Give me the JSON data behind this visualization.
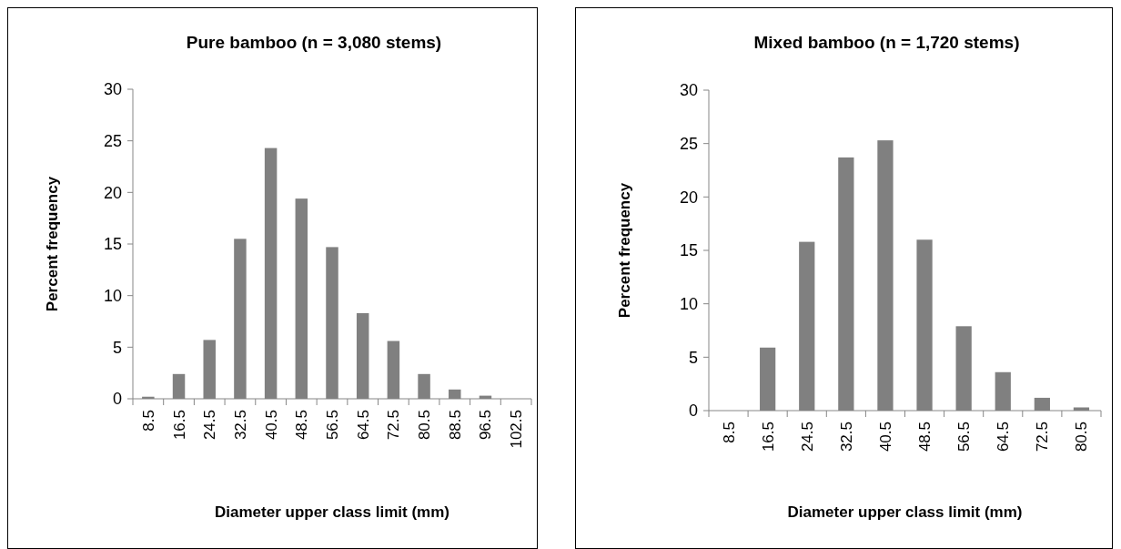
{
  "chart_data": [
    {
      "type": "bar",
      "title": "Pure bamboo (n = 3,080 stems)",
      "xlabel": "Diameter upper class limit (mm)",
      "ylabel": "Percent frequency",
      "categories": [
        "8.5",
        "16.5",
        "24.5",
        "32.5",
        "40.5",
        "48.5",
        "56.5",
        "64.5",
        "72.5",
        "80.5",
        "88.5",
        "96.5",
        "102.5"
      ],
      "values": [
        0.2,
        2.4,
        5.7,
        15.5,
        24.3,
        19.4,
        14.7,
        8.3,
        5.6,
        2.4,
        0.9,
        0.3,
        0
      ],
      "color": "#808080",
      "ylim": [
        0,
        30
      ],
      "yticks": [
        0,
        5,
        10,
        15,
        20,
        25,
        30
      ],
      "grid": false
    },
    {
      "type": "bar",
      "title": "Mixed bamboo (n = 1,720 stems)",
      "xlabel": "Diameter upper class limit (mm)",
      "ylabel": "Percent frequency",
      "categories": [
        "8.5",
        "16.5",
        "24.5",
        "32.5",
        "40.5",
        "48.5",
        "56.5",
        "64.5",
        "72.5",
        "80.5"
      ],
      "values": [
        0,
        5.9,
        15.8,
        23.7,
        25.3,
        16.0,
        7.9,
        3.6,
        1.2,
        0.3
      ],
      "color": "#808080",
      "ylim": [
        0,
        30
      ],
      "yticks": [
        0,
        5,
        10,
        15,
        20,
        25,
        30
      ],
      "grid": false
    }
  ]
}
